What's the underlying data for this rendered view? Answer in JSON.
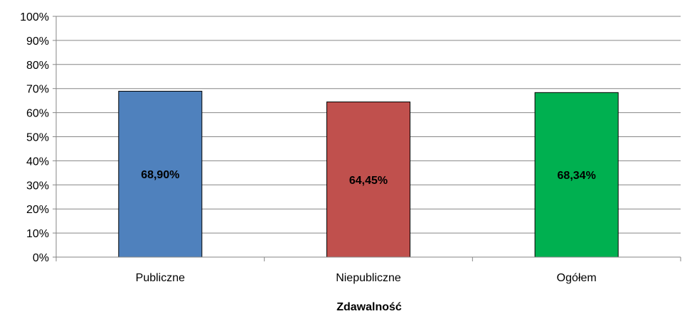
{
  "chart_data": {
    "type": "bar",
    "categories": [
      "Publiczne",
      "Niepubliczne",
      "Ogółem"
    ],
    "values": [
      68.9,
      64.45,
      68.34
    ],
    "value_labels": [
      "68,90%",
      "64,45%",
      "68,34%"
    ],
    "colors": [
      "#4f81bd",
      "#c0504d",
      "#00b050"
    ],
    "xlabel": "Zdawalność",
    "ylabel": "",
    "ylim": [
      0,
      100
    ],
    "yticks": [
      0,
      10,
      20,
      30,
      40,
      50,
      60,
      70,
      80,
      90,
      100
    ],
    "ytick_labels": [
      "0%",
      "10%",
      "20%",
      "30%",
      "40%",
      "50%",
      "60%",
      "70%",
      "80%",
      "90%",
      "100%"
    ],
    "grid": true,
    "legend": "none"
  }
}
